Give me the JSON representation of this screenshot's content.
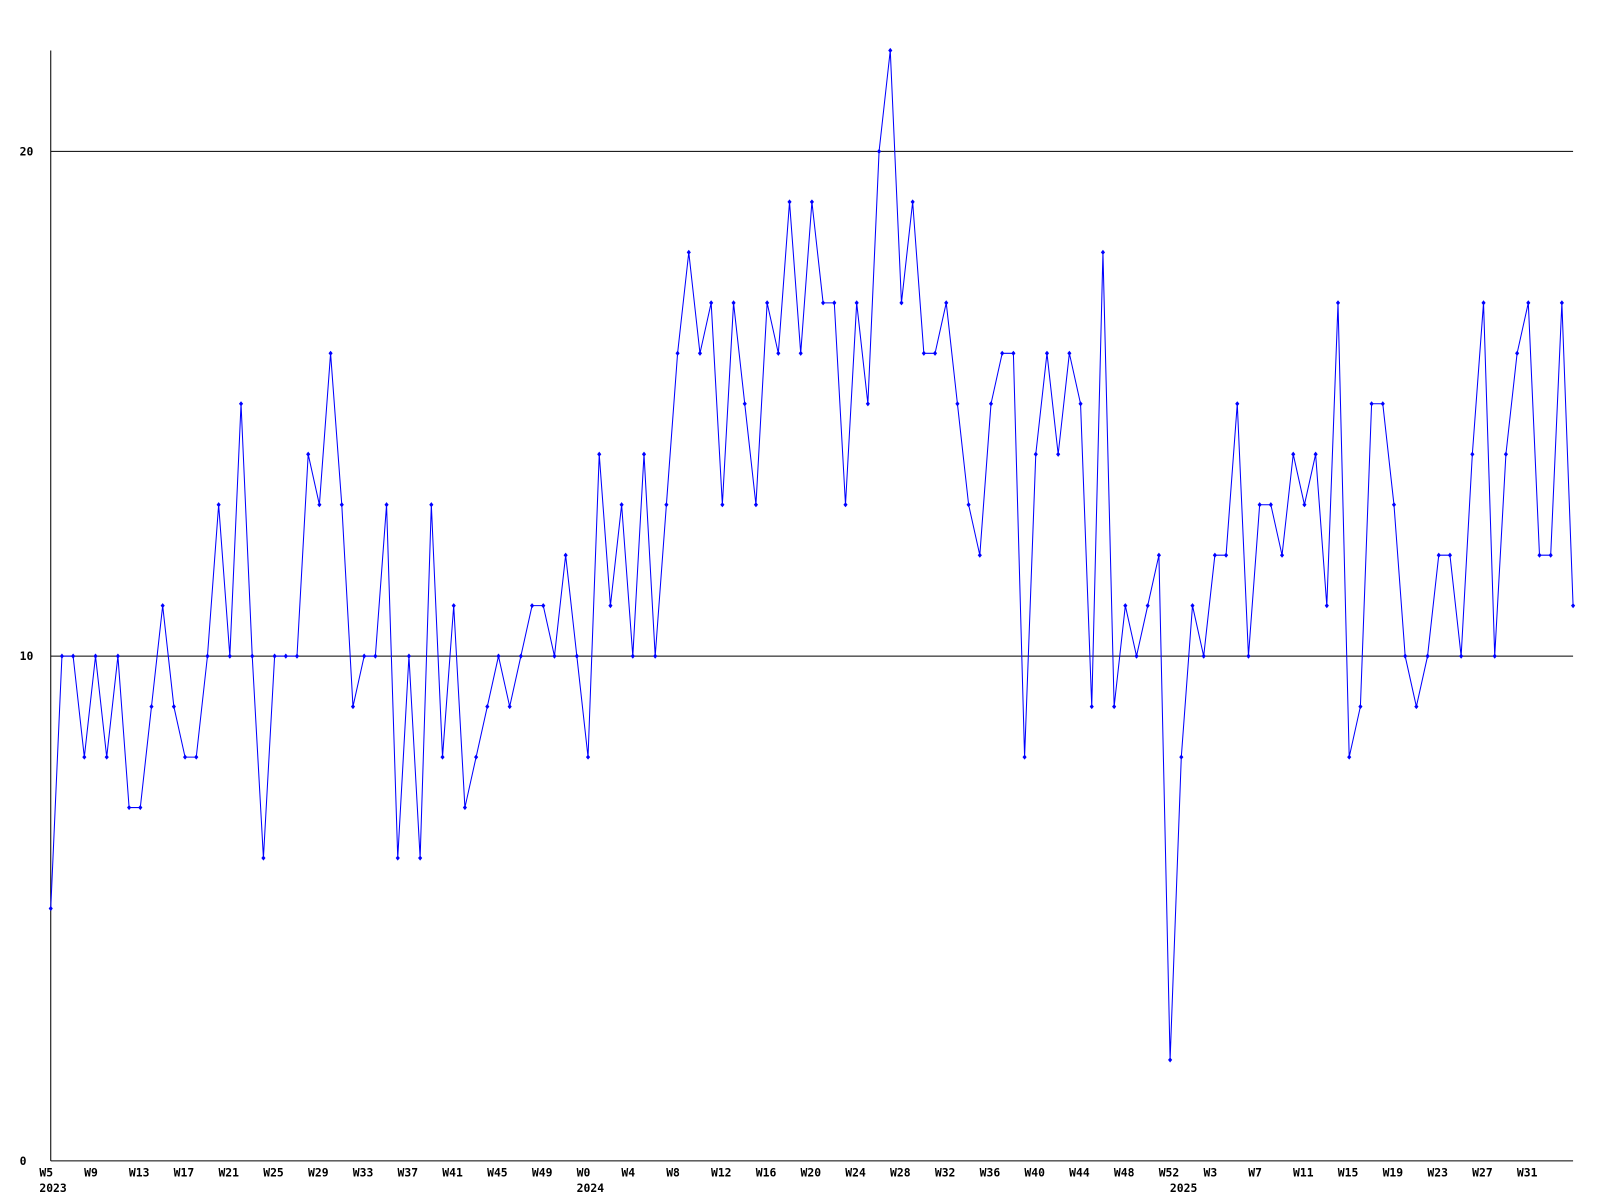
{
  "chart_data": {
    "type": "line",
    "categories": [
      "W5",
      null,
      null,
      null,
      "W9",
      null,
      null,
      null,
      "W13",
      null,
      null,
      null,
      "W17",
      null,
      null,
      null,
      "W21",
      null,
      null,
      null,
      "W25",
      null,
      null,
      null,
      "W29",
      null,
      null,
      null,
      "W33",
      null,
      null,
      null,
      "W37",
      null,
      null,
      null,
      "W41",
      null,
      null,
      null,
      "W45",
      null,
      null,
      null,
      "W49",
      null,
      null,
      null,
      "W0",
      null,
      null,
      null,
      "W4",
      null,
      null,
      null,
      "W8",
      null,
      null,
      null,
      "W12",
      null,
      null,
      null,
      "W16",
      null,
      null,
      null,
      "W20",
      null,
      null,
      null,
      "W24",
      null,
      null,
      null,
      "W28",
      null,
      null,
      null,
      "W32",
      null,
      null,
      null,
      "W36",
      null,
      null,
      null,
      "W40",
      null,
      null,
      null,
      "W44",
      null,
      null,
      null,
      "W48",
      null,
      null,
      null,
      "W52",
      null,
      null,
      null,
      "W3",
      null,
      null,
      null,
      "W7",
      null,
      null,
      null,
      "W11",
      null,
      null,
      null,
      "W15",
      null,
      null,
      null,
      "W19",
      null,
      null,
      null,
      "W23",
      null,
      null,
      null,
      "W27",
      null,
      null,
      null,
      "W31",
      null,
      null,
      null,
      null
    ],
    "year_labels": [
      {
        "category": 0,
        "label": "2023"
      },
      {
        "category": 48,
        "label": "2024"
      },
      {
        "category": 101,
        "label": "2025"
      }
    ],
    "series": [
      {
        "color": "#0000ff",
        "values": [
          5,
          10,
          10,
          8,
          10,
          8,
          10,
          7,
          7,
          9,
          11,
          9,
          8,
          8,
          10,
          13,
          10,
          15,
          10,
          6,
          10,
          10,
          10,
          14,
          13,
          16,
          13,
          9,
          10,
          10,
          13,
          6,
          10,
          6,
          13,
          8,
          11,
          7,
          8,
          9,
          10,
          9,
          10,
          11,
          11,
          10,
          12,
          10,
          8,
          14,
          11,
          13,
          10,
          14,
          10,
          13,
          16,
          18,
          16,
          17,
          13,
          17,
          15,
          13,
          17,
          16,
          19,
          16,
          19,
          17,
          17,
          13,
          17,
          15,
          20,
          22,
          17,
          19,
          16,
          16,
          17,
          15,
          13,
          12,
          15,
          16,
          16,
          8,
          14,
          16,
          14,
          16,
          15,
          9,
          18,
          9,
          11,
          10,
          11,
          12,
          2,
          8,
          11,
          10,
          12,
          12,
          15,
          10,
          13,
          13,
          12,
          14,
          13,
          14,
          11,
          17,
          8,
          9,
          15,
          15,
          13,
          10,
          9,
          10,
          12,
          12,
          10,
          14,
          17,
          10,
          14,
          16,
          17,
          12,
          12,
          17,
          11
        ]
      }
    ],
    "ylim": [
      0,
      22
    ],
    "yticks": [
      0,
      10,
      20
    ],
    "grid": true
  }
}
